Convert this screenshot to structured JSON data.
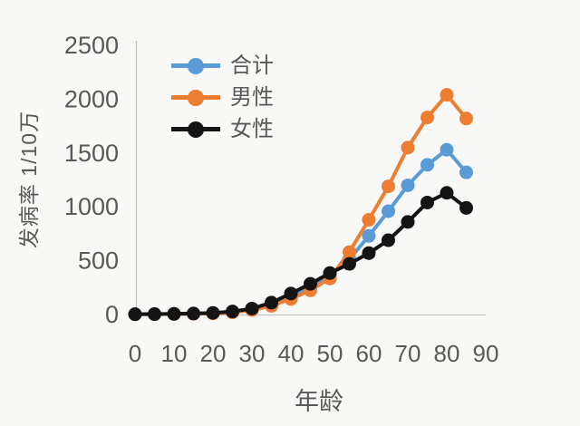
{
  "colors": {
    "background": "#f8f8f6",
    "axis_line": "#c2c2c2",
    "text": "#595959"
  },
  "chart_data": {
    "type": "line",
    "title": "",
    "xlabel": "年龄",
    "ylabel": "发病率 1/10万",
    "grid": false,
    "marker": "circle",
    "legend_position": "upper-left-inside",
    "xlim": [
      0,
      90
    ],
    "ylim": [
      0,
      2500
    ],
    "x_ticks": [
      0,
      10,
      20,
      30,
      40,
      50,
      60,
      70,
      80,
      90
    ],
    "y_ticks": [
      0,
      500,
      1000,
      1500,
      2000,
      2500
    ],
    "x": [
      0,
      5,
      10,
      15,
      20,
      25,
      30,
      35,
      40,
      45,
      50,
      55,
      60,
      65,
      70,
      75,
      80,
      85
    ],
    "series": [
      {
        "id": "total",
        "name": "合计",
        "color": "#5B9BD5",
        "values": [
          3,
          3,
          5,
          8,
          13,
          24,
          48,
          95,
          170,
          255,
          360,
          515,
          730,
          960,
          1200,
          1390,
          1530,
          1320
        ]
      },
      {
        "id": "male",
        "name": "男性",
        "color": "#ED7D31",
        "values": [
          2,
          3,
          5,
          7,
          11,
          20,
          42,
          80,
          145,
          225,
          335,
          580,
          880,
          1190,
          1550,
          1830,
          2040,
          1820
        ]
      },
      {
        "id": "female",
        "name": "女性",
        "color": "#141414",
        "values": [
          3,
          4,
          6,
          9,
          15,
          28,
          55,
          110,
          195,
          285,
          385,
          470,
          570,
          690,
          860,
          1040,
          1130,
          990
        ]
      }
    ]
  }
}
